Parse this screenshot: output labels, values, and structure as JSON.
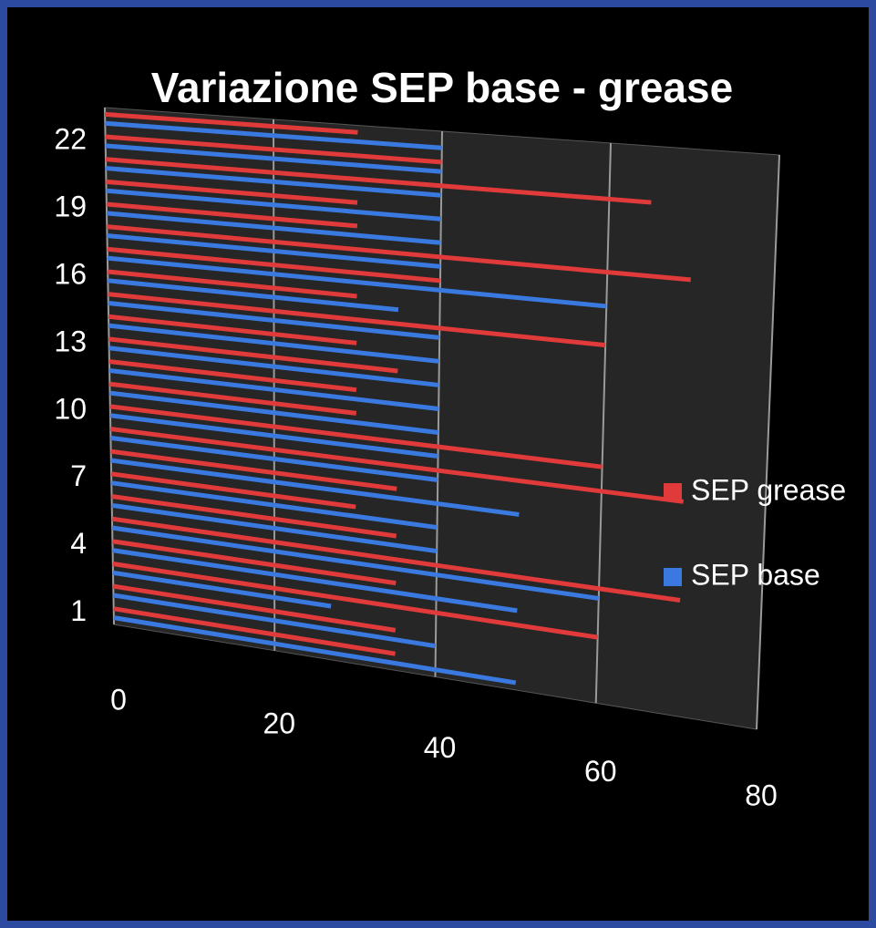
{
  "chart_data": {
    "type": "bar3d",
    "orientation": "horizontal",
    "title": "Variazione SEP base - grease",
    "categories": [
      "1",
      null,
      null,
      "4",
      null,
      null,
      "7",
      null,
      null,
      "10",
      null,
      null,
      "13",
      null,
      null,
      "16",
      null,
      null,
      "19",
      null,
      null,
      "22",
      null
    ],
    "series": [
      {
        "name": "SEP grease",
        "color": "#e03a3a",
        "values": [
          35,
          35,
          60,
          35,
          70,
          35,
          30,
          35,
          70,
          60,
          30,
          30,
          35,
          30,
          60,
          30,
          40,
          70,
          30,
          30,
          65,
          40,
          30
        ]
      },
      {
        "name": "SEP base",
        "color": "#3a7ae0",
        "values": [
          50,
          40,
          27,
          50,
          60,
          40,
          40,
          50,
          40,
          40,
          40,
          40,
          40,
          40,
          40,
          35,
          60,
          40,
          40,
          40,
          40,
          40,
          40
        ]
      }
    ],
    "xlim": [
      0,
      80
    ],
    "xticks": [
      0,
      20,
      40,
      60,
      80
    ],
    "grid": true,
    "legend": "right"
  }
}
